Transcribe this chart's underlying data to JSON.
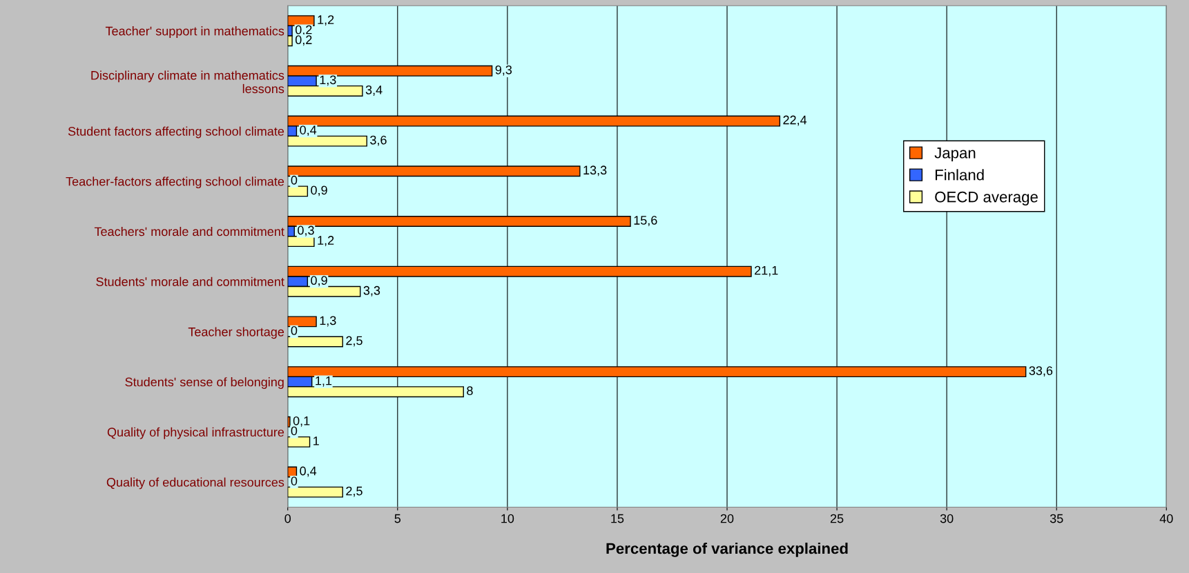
{
  "chart_data": {
    "type": "bar",
    "orientation": "horizontal",
    "xlabel": "Percentage of variance explained",
    "categories": [
      "Teacher' support in mathematics",
      "Disciplinary climate in mathematics\nlessons",
      "Student factors affecting school climate",
      "Teacher-factors affecting school climate",
      "Teachers' morale and commitment",
      "Students' morale and commitment",
      "Teacher shortage",
      "Students' sense of belonging",
      "Quality of physical infrastructure",
      "Quality of educational resources"
    ],
    "series": [
      {
        "name": "Japan",
        "color": "#ff6600",
        "values": [
          1.2,
          9.3,
          22.4,
          13.3,
          15.6,
          21.1,
          1.3,
          33.6,
          0.1,
          0.4
        ],
        "value_labels": [
          "1,2",
          "9,3",
          "22,4",
          "13,3",
          "15,6",
          "21,1",
          "1,3",
          "33,6",
          "0,1",
          "0,4"
        ]
      },
      {
        "name": "Finland",
        "color": "#3366ff",
        "values": [
          0.2,
          1.3,
          0.4,
          0,
          0.3,
          0.9,
          0,
          1.1,
          0,
          0
        ],
        "value_labels": [
          "0,2",
          "1,3",
          "0,4",
          "0",
          "0,3",
          "0,9",
          "0",
          "1,1",
          "0",
          "0"
        ]
      },
      {
        "name": "OECD average",
        "color": "#ffff99",
        "values": [
          0.2,
          3.4,
          3.6,
          0.9,
          1.2,
          3.3,
          2.5,
          8,
          1,
          2.5
        ],
        "value_labels": [
          "0,2",
          "3,4",
          "3,6",
          "0,9",
          "1,2",
          "3,3",
          "2,5",
          "8",
          "1",
          "2,5"
        ]
      }
    ],
    "xlim": [
      0,
      40
    ],
    "xticks": [
      0,
      5,
      10,
      15,
      20,
      25,
      30,
      35,
      40
    ],
    "grid": "x",
    "legend": "right"
  }
}
